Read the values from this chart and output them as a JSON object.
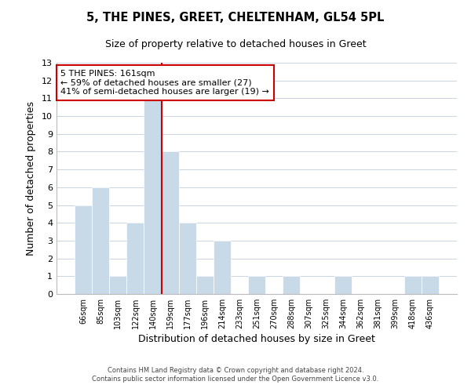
{
  "title": "5, THE PINES, GREET, CHELTENHAM, GL54 5PL",
  "subtitle": "Size of property relative to detached houses in Greet",
  "xlabel": "Distribution of detached houses by size in Greet",
  "ylabel": "Number of detached properties",
  "bin_labels": [
    "66sqm",
    "85sqm",
    "103sqm",
    "122sqm",
    "140sqm",
    "159sqm",
    "177sqm",
    "196sqm",
    "214sqm",
    "233sqm",
    "251sqm",
    "270sqm",
    "288sqm",
    "307sqm",
    "325sqm",
    "344sqm",
    "362sqm",
    "381sqm",
    "399sqm",
    "418sqm",
    "436sqm"
  ],
  "bar_heights": [
    5,
    6,
    1,
    4,
    11,
    8,
    4,
    1,
    3,
    0,
    1,
    0,
    1,
    0,
    0,
    1,
    0,
    0,
    0,
    1,
    1
  ],
  "bar_color": "#c8d9e8",
  "bar_edge_color": "white",
  "vline_x_index": 4,
  "vline_color": "#cc0000",
  "ylim": [
    0,
    13
  ],
  "yticks": [
    0,
    1,
    2,
    3,
    4,
    5,
    6,
    7,
    8,
    9,
    10,
    11,
    12,
    13
  ],
  "annotation_title": "5 THE PINES: 161sqm",
  "annotation_line1": "← 59% of detached houses are smaller (27)",
  "annotation_line2": "41% of semi-detached houses are larger (19) →",
  "footer_line1": "Contains HM Land Registry data © Crown copyright and database right 2024.",
  "footer_line2": "Contains public sector information licensed under the Open Government Licence v3.0.",
  "background_color": "#ffffff",
  "grid_color": "#c8d4e0"
}
